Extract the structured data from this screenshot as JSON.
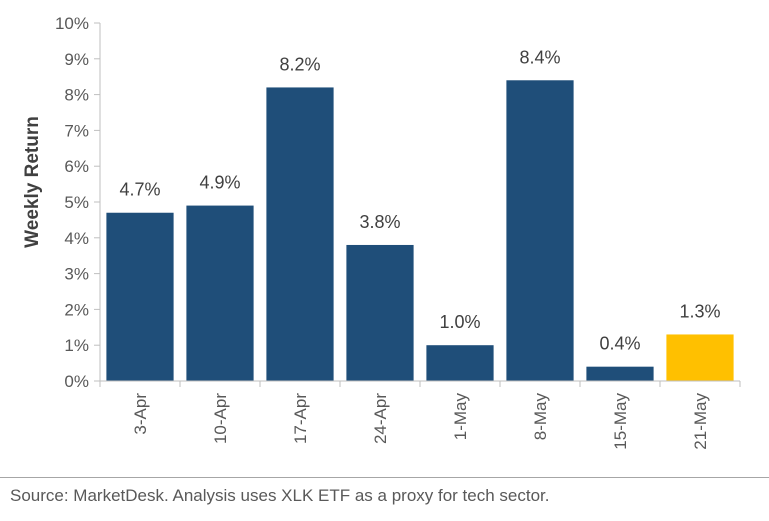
{
  "chart_data": {
    "type": "bar",
    "categories": [
      "3-Apr",
      "10-Apr",
      "17-Apr",
      "24-Apr",
      "1-May",
      "8-May",
      "15-May",
      "21-May"
    ],
    "values": [
      4.7,
      4.9,
      8.2,
      3.8,
      1.0,
      8.4,
      0.4,
      1.3
    ],
    "data_labels": [
      "4.7%",
      "4.9%",
      "8.2%",
      "3.8%",
      "1.0%",
      "8.4%",
      "0.4%",
      "1.3%"
    ],
    "title": "",
    "xlabel": "",
    "ylabel": "Weekly Return",
    "ylim": [
      0,
      10
    ],
    "y_ticks": [
      0,
      1,
      2,
      3,
      4,
      5,
      6,
      7,
      8,
      9,
      10
    ],
    "y_tick_labels": [
      "0%",
      "1%",
      "2%",
      "3%",
      "4%",
      "5%",
      "6%",
      "7%",
      "8%",
      "9%",
      "10%"
    ],
    "grid": false,
    "colors": {
      "bar": "#1f4e79",
      "highlight_bar": "#ffc000",
      "highlight_index": 7,
      "axis": "#bfbfbf"
    }
  },
  "footer": {
    "source": "Source: MarketDesk. Analysis uses XLK ETF as a proxy for tech sector."
  }
}
